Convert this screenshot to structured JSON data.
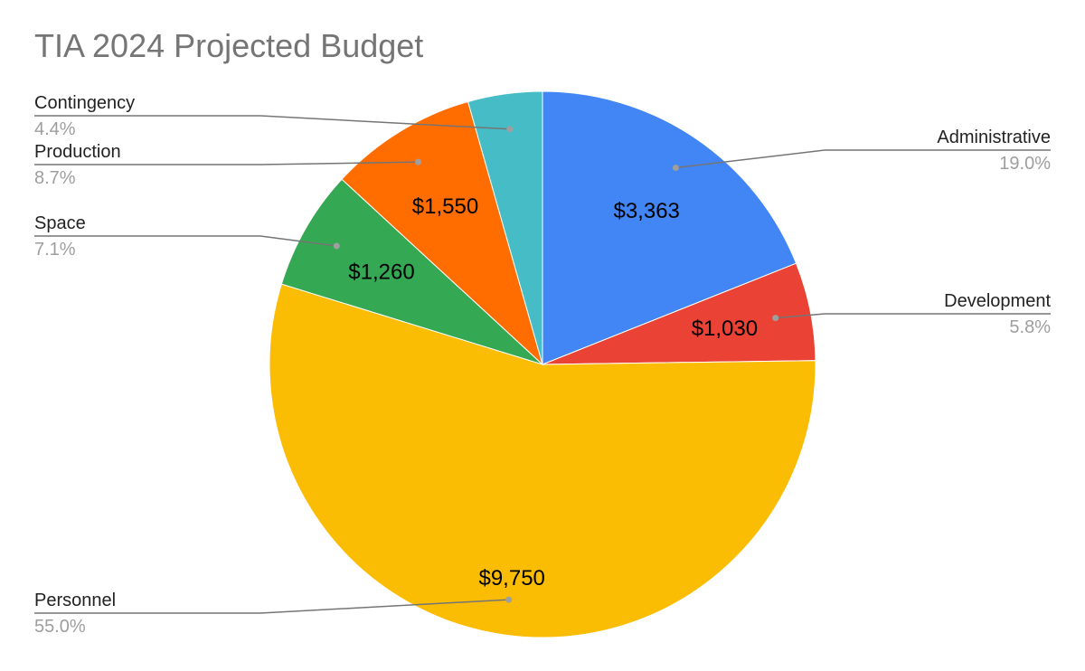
{
  "chart_data": {
    "type": "pie",
    "title": "TIA 2024 Projected Budget",
    "slices": [
      {
        "name": "Administrative",
        "value": 3363,
        "value_label": "$3,363",
        "percent_label": "19.0%",
        "color": "#4285F4"
      },
      {
        "name": "Development",
        "value": 1030,
        "value_label": "$1,030",
        "percent_label": "5.8%",
        "color": "#EA4335"
      },
      {
        "name": "Personnel",
        "value": 9750,
        "value_label": "$9,750",
        "percent_label": "55.0%",
        "color": "#FBBC04"
      },
      {
        "name": "Space",
        "value": 1260,
        "value_label": "$1,260",
        "percent_label": "7.1%",
        "color": "#34A853"
      },
      {
        "name": "Production",
        "value": 1550,
        "value_label": "$1,550",
        "percent_label": "8.7%",
        "color": "#FF6D01"
      },
      {
        "name": "Contingency",
        "value": 780,
        "value_label": "",
        "percent_label": "4.4%",
        "color": "#46BDC6"
      }
    ],
    "start_angle": "12 o'clock",
    "direction": "clockwise"
  }
}
